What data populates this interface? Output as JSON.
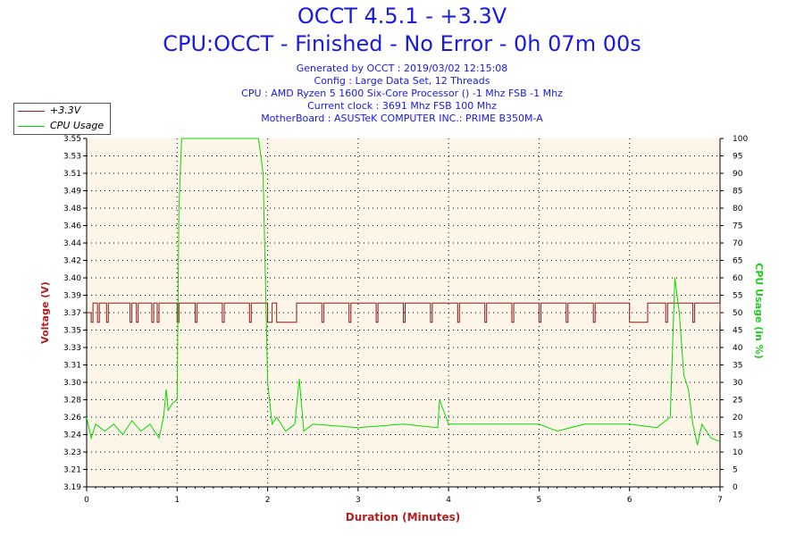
{
  "header": {
    "title": "OCCT 4.5.1 - +3.3V",
    "subtitle": "CPU:OCCT - Finished - No Error - 0h 07m 00s",
    "info_lines": [
      "Generated by OCCT : 2019/03/02 12:15:08",
      "Config : Large Data Set, 12 Threads",
      "CPU : AMD Ryzen 5 1600 Six-Core Processor () -1 Mhz FSB -1 Mhz",
      "Current clock : 3691 Mhz FSB 100 Mhz",
      "MotherBoard : ASUSTeK COMPUTER INC.: PRIME B350M-A"
    ]
  },
  "colors": {
    "title": "#1a1adc",
    "voltage": "#8b1a1a",
    "cpu": "#00dd00",
    "plot_bg": "#fcf5e8",
    "axis_label_left": "#b02020",
    "axis_label_right": "#22cc22",
    "xlabel": "#b02020"
  },
  "legend": [
    {
      "label": "+3.3V",
      "color": "#8b1a1a"
    },
    {
      "label": "CPU Usage",
      "color": "#00dd00"
    }
  ],
  "chart_data": {
    "type": "line",
    "title": "OCCT 4.5.1 - +3.3V",
    "xlabel": "Duration (Minutes)",
    "ylabel": "Voltage (V)",
    "y2label": "CPU Usage (in %)",
    "xlim": [
      0,
      7
    ],
    "ylim": [
      3.19,
      3.55
    ],
    "y2lim": [
      0,
      100
    ],
    "x_ticks": [
      "0",
      "1",
      "2",
      "3",
      "4",
      "5",
      "6",
      "7"
    ],
    "y_ticks": [
      "3.19",
      "3.21",
      "3.23",
      "3.24",
      "3.26",
      "3.28",
      "3.30",
      "3.31",
      "3.33",
      "3.35",
      "3.37",
      "3.39",
      "3.40",
      "3.42",
      "3.44",
      "3.46",
      "3.48",
      "3.49",
      "3.51",
      "3.53",
      "3.55"
    ],
    "y2_ticks": [
      "0",
      "5",
      "10",
      "15",
      "20",
      "25",
      "30",
      "35",
      "40",
      "45",
      "50",
      "55",
      "60",
      "65",
      "70",
      "75",
      "80",
      "85",
      "90",
      "95",
      "100"
    ],
    "grid": true,
    "legend_position": "top-left",
    "series": [
      {
        "name": "+3.3V",
        "axis": "left",
        "color": "#8b1a1a",
        "x": [
          0,
          0.05,
          0.07,
          0.12,
          0.14,
          0.22,
          0.24,
          0.48,
          0.5,
          0.55,
          0.57,
          0.72,
          0.74,
          0.78,
          0.8,
          1.0,
          1.02,
          1.2,
          1.22,
          1.5,
          1.52,
          1.8,
          1.82,
          2.0,
          2.05,
          2.1,
          2.3,
          2.32,
          2.6,
          2.62,
          2.9,
          2.92,
          3.2,
          3.22,
          3.5,
          3.52,
          3.8,
          3.82,
          4.1,
          4.12,
          4.4,
          4.42,
          4.7,
          4.72,
          5.0,
          5.02,
          5.3,
          5.32,
          5.6,
          5.62,
          5.8,
          6.0,
          6.2,
          6.4,
          6.42,
          6.7,
          6.72,
          7.0
        ],
        "y": [
          3.37,
          3.36,
          3.38,
          3.36,
          3.38,
          3.36,
          3.38,
          3.36,
          3.38,
          3.36,
          3.38,
          3.36,
          3.38,
          3.36,
          3.38,
          3.36,
          3.38,
          3.36,
          3.38,
          3.36,
          3.38,
          3.36,
          3.38,
          3.36,
          3.38,
          3.36,
          3.36,
          3.38,
          3.36,
          3.38,
          3.36,
          3.38,
          3.36,
          3.38,
          3.36,
          3.38,
          3.36,
          3.38,
          3.36,
          3.38,
          3.36,
          3.38,
          3.36,
          3.38,
          3.36,
          3.38,
          3.36,
          3.38,
          3.36,
          3.38,
          3.38,
          3.36,
          3.38,
          3.36,
          3.38,
          3.36,
          3.38,
          3.36
        ]
      },
      {
        "name": "CPU Usage",
        "axis": "right",
        "color": "#00dd00",
        "x": [
          0,
          0.05,
          0.1,
          0.2,
          0.3,
          0.4,
          0.5,
          0.6,
          0.7,
          0.8,
          0.85,
          0.88,
          0.9,
          0.95,
          1.0,
          1.02,
          1.05,
          1.1,
          1.5,
          1.9,
          1.95,
          1.98,
          2.0,
          2.05,
          2.1,
          2.2,
          2.3,
          2.35,
          2.4,
          2.5,
          3.0,
          3.5,
          3.88,
          3.9,
          4.0,
          4.5,
          5.0,
          5.2,
          5.5,
          6.0,
          6.3,
          6.45,
          6.5,
          6.55,
          6.6,
          6.65,
          6.7,
          6.75,
          6.8,
          6.9,
          7.0
        ],
        "y": [
          20,
          14,
          18,
          16,
          18,
          15,
          19,
          16,
          18,
          14,
          20,
          28,
          22,
          24,
          25,
          80,
          100,
          100,
          100,
          100,
          90,
          55,
          30,
          18,
          20,
          16,
          18,
          31,
          16,
          18,
          17,
          18,
          17,
          25,
          18,
          18,
          18,
          16,
          18,
          18,
          17,
          20,
          60,
          50,
          32,
          28,
          18,
          12,
          18,
          14,
          13
        ]
      }
    ]
  }
}
